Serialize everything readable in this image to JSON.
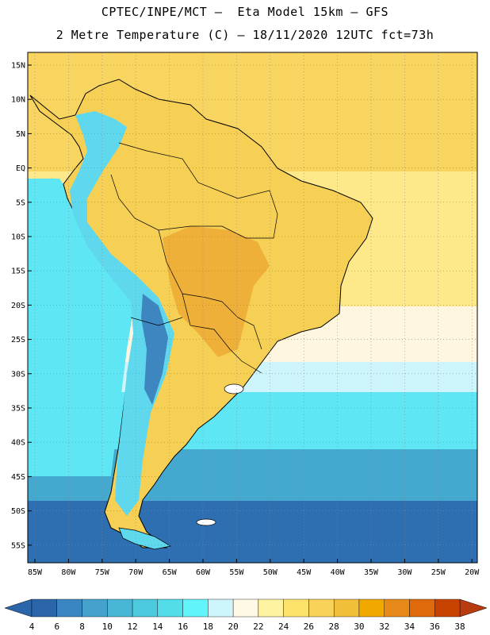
{
  "header": {
    "line1": "CPTEC/INPE/MCT –  Eta Model 15km – GFS",
    "line2": "2 Metre Temperature (C) – 18/11/2020 12UTC fct=73h"
  },
  "axes": {
    "lat_labels": [
      "15N",
      "10N",
      "5N",
      "EQ",
      "5S",
      "10S",
      "15S",
      "20S",
      "25S",
      "30S",
      "35S",
      "40S",
      "45S",
      "50S",
      "55S"
    ],
    "lon_labels": [
      "85W",
      "80W",
      "75W",
      "70W",
      "65W",
      "60W",
      "55W",
      "50W",
      "45W",
      "40W",
      "35W",
      "30W",
      "25W",
      "20W"
    ]
  },
  "colorbar": {
    "labels": [
      "4",
      "6",
      "8",
      "10",
      "12",
      "14",
      "16",
      "18",
      "20",
      "22",
      "24",
      "26",
      "28",
      "30",
      "32",
      "34",
      "36",
      "38"
    ],
    "colors": [
      "#2b66aa",
      "#3a86c2",
      "#44a2cc",
      "#48b6d6",
      "#4ccade",
      "#52dde8",
      "#61f5fb",
      "#cdf5fb",
      "#fff9e6",
      "#fdf3a0",
      "#fde36b",
      "#f9d25a",
      "#f2bf3a",
      "#f1a900",
      "#e88a1a",
      "#de6a0b",
      "#c94300"
    ],
    "left_arrow_color": "#2b66aa",
    "right_arrow_color": "#b93c10"
  },
  "palette": {
    "ocean_deep": "#2e6fb1",
    "ocean_mid": "#44a8cf",
    "ocean_cyan": "#5fe6f4",
    "ocean_light": "#cdf5fb",
    "ocean_cream": "#fff6e0",
    "ocean_warm": "#fde88a",
    "tropic": "#f8d560",
    "land_hot": "#efb03a",
    "land_warm": "#f6cf55",
    "andes": "#5fd8ee",
    "andes_high": "#3e86c0"
  }
}
